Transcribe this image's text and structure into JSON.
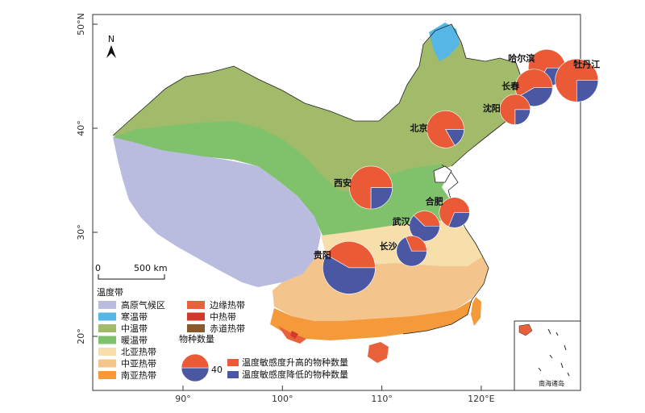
{
  "axes": {
    "lon_ticks": [
      "90°",
      "100°",
      "110°",
      "120°E"
    ],
    "lat_ticks": [
      "50°N",
      "40°",
      "30°",
      "20°"
    ]
  },
  "north_label": "N",
  "scale_bar": {
    "zero": "0",
    "label": "500 km"
  },
  "inset_label": "南海诸岛",
  "colors": {
    "plateau": "#b9bcdf",
    "cold_temperate": "#56b6e6",
    "mid_temperate": "#a1bb6a",
    "warm_temperate": "#7fc26b",
    "north_subtropical": "#f6dfaa",
    "mid_subtropical": "#f3c48c",
    "south_subtropical": "#f59a3a",
    "marginal_tropical": "#e8613a",
    "mid_tropical": "#d13a2a",
    "equatorial_tropical": "#8c5a2a",
    "increase": "#ea5a37",
    "decrease": "#4a58a3"
  },
  "legend": {
    "title": "温度带",
    "zones_col1": [
      {
        "label": "高原气候区",
        "color": "#b9bcdf"
      },
      {
        "label": "寒温带",
        "color": "#56b6e6"
      },
      {
        "label": "中温带",
        "color": "#a1bb6a"
      },
      {
        "label": "暖温带",
        "color": "#7fc26b"
      },
      {
        "label": "北亚热带",
        "color": "#f6dfaa"
      },
      {
        "label": "中亚热带",
        "color": "#f3c48c"
      },
      {
        "label": "南亚热带",
        "color": "#f59a3a"
      }
    ],
    "zones_col2": [
      {
        "label": "边缘热带",
        "color": "#e8613a"
      },
      {
        "label": "中热带",
        "color": "#d13a2a"
      },
      {
        "label": "赤道热带",
        "color": "#8c5a2a"
      }
    ],
    "species_title": "物种数量",
    "species_value": "40",
    "increase_label": "温度敏感度升高的物种数量",
    "decrease_label": "温度敏感度降低的物种数量"
  },
  "cities": [
    {
      "name": "哈尔滨",
      "lon": 126.6,
      "lat": 45.8,
      "total": 24,
      "increase": 16,
      "decrease": 8
    },
    {
      "name": "牡丹江",
      "lon": 129.6,
      "lat": 44.6,
      "total": 32,
      "increase": 24,
      "decrease": 8
    },
    {
      "name": "长春",
      "lon": 125.3,
      "lat": 43.9,
      "total": 24,
      "increase": 14,
      "decrease": 10
    },
    {
      "name": "沈阳",
      "lon": 123.4,
      "lat": 41.8,
      "total": 16,
      "increase": 12,
      "decrease": 4
    },
    {
      "name": "北京",
      "lon": 116.4,
      "lat": 39.9,
      "total": 24,
      "increase": 20,
      "decrease": 4
    },
    {
      "name": "西安",
      "lon": 108.9,
      "lat": 34.3,
      "total": 32,
      "increase": 24,
      "decrease": 8
    },
    {
      "name": "合肥",
      "lon": 117.3,
      "lat": 31.9,
      "total": 16,
      "increase": 11,
      "decrease": 5
    },
    {
      "name": "武汉",
      "lon": 114.3,
      "lat": 30.6,
      "total": 16,
      "increase": 6,
      "decrease": 10
    },
    {
      "name": "长沙",
      "lon": 113.0,
      "lat": 28.2,
      "total": 16,
      "increase": 5,
      "decrease": 11
    },
    {
      "name": "贵阳",
      "lon": 106.7,
      "lat": 26.6,
      "total": 48,
      "increase": 20,
      "decrease": 28
    }
  ]
}
